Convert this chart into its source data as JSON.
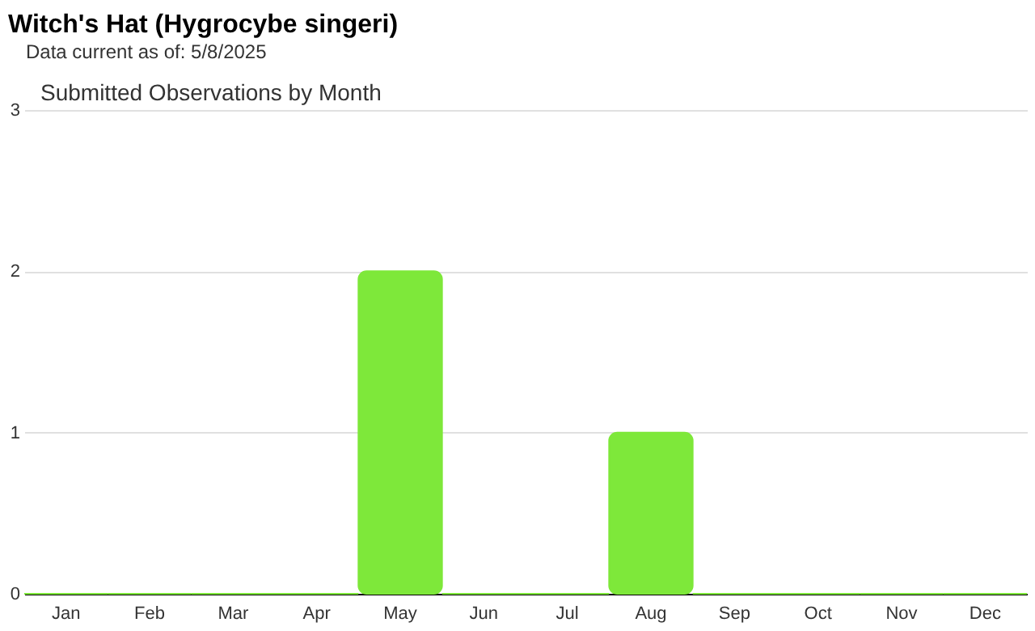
{
  "chart_data": {
    "type": "bar",
    "title": "Witch's Hat   (Hygrocybe singeri)",
    "subtitle": "Data current as of: 5/8/2025",
    "annotations": [
      "Submitted Observations by Month"
    ],
    "categories": [
      "Jan",
      "Feb",
      "Mar",
      "Apr",
      "May",
      "Jun",
      "Jul",
      "Aug",
      "Sep",
      "Oct",
      "Nov",
      "Dec"
    ],
    "values": [
      0,
      0,
      0,
      0,
      2,
      0,
      0,
      1,
      0,
      0,
      0,
      0
    ],
    "color": "#7ee83a",
    "ylim": [
      0,
      3
    ],
    "yticks": [
      0,
      1,
      2,
      3
    ],
    "grid": "y"
  }
}
